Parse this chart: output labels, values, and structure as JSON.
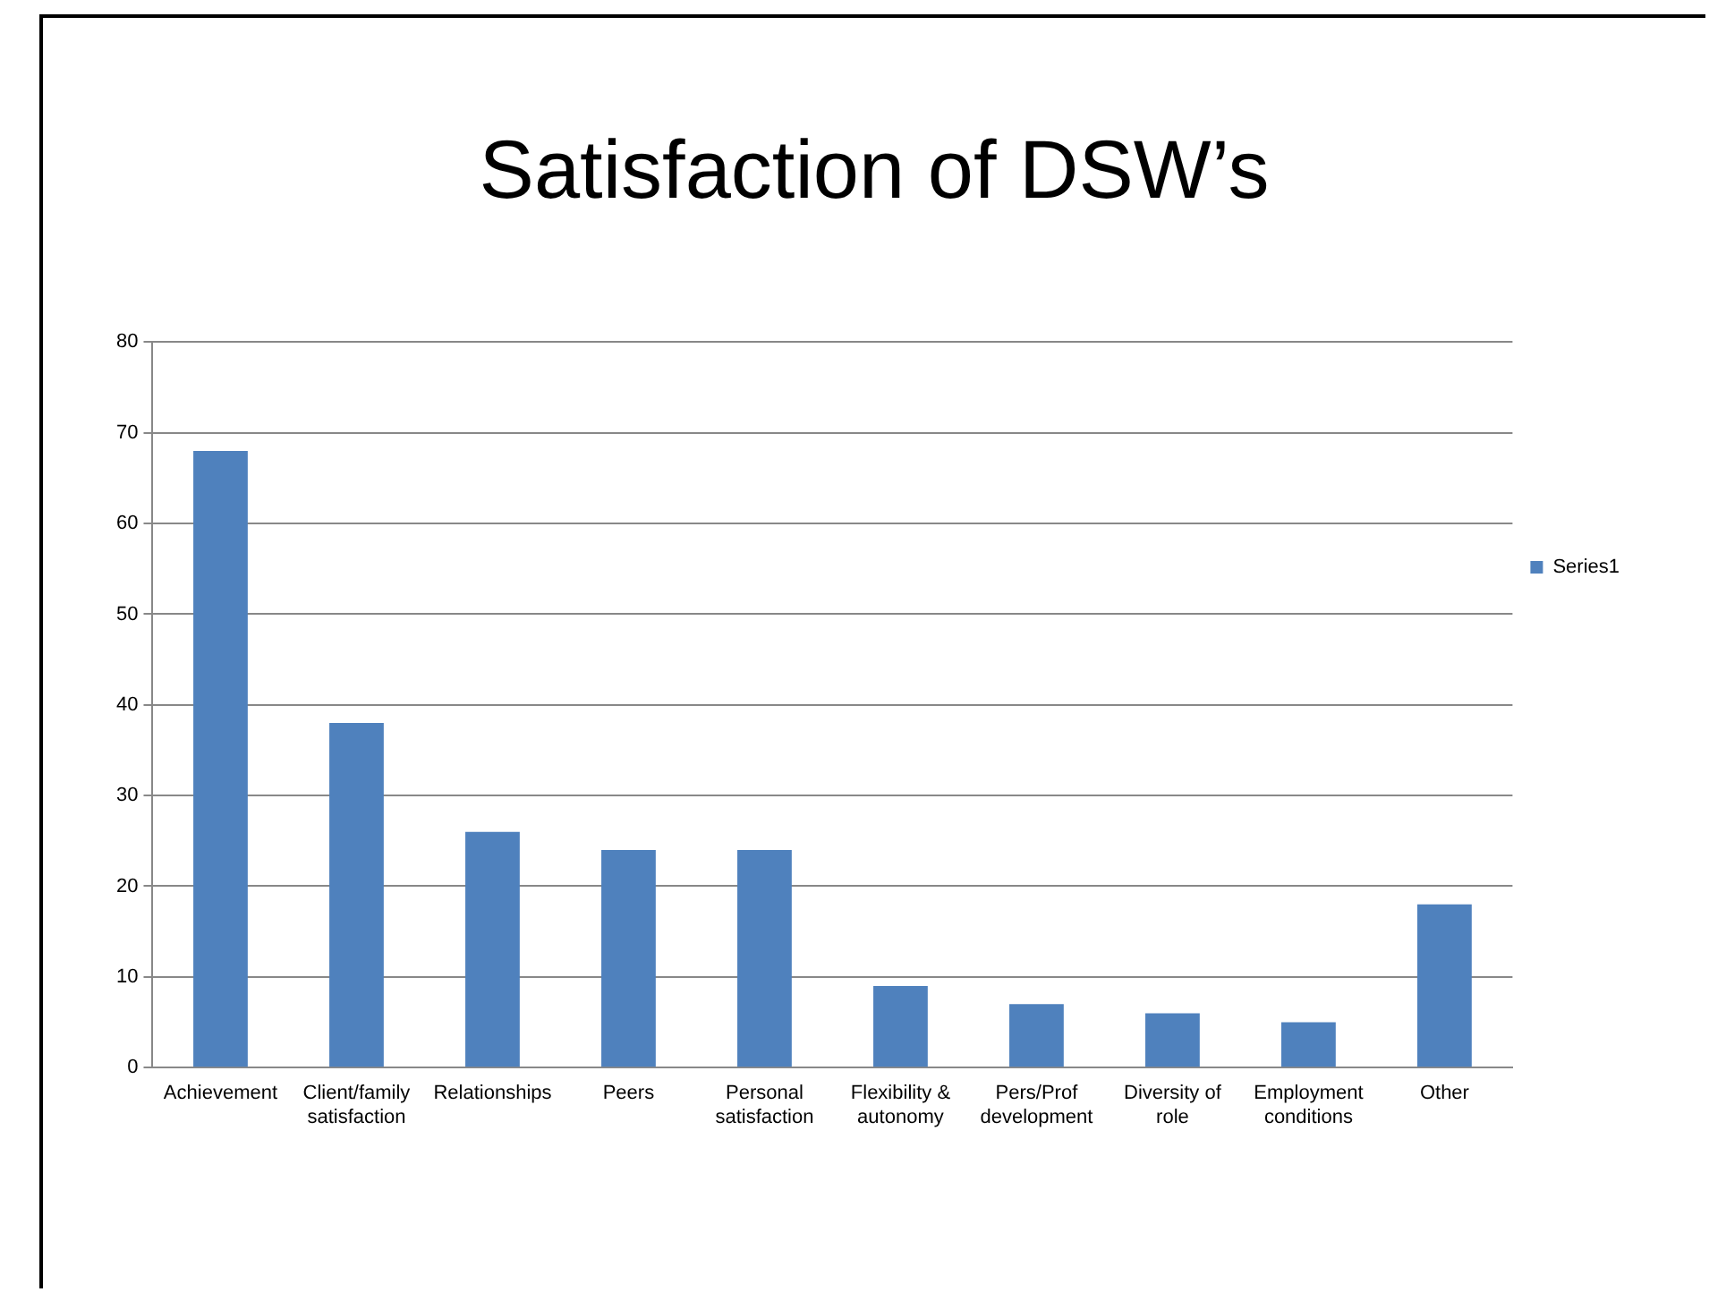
{
  "chart_data": {
    "type": "bar",
    "title": "Satisfaction of DSW’s",
    "categories": [
      "Achievement",
      "Client/family satisfaction",
      "Relationships",
      "Peers",
      "Personal satisfaction",
      "Flexibility & autonomy",
      "Pers/Prof development",
      "Diversity of role",
      "Employment conditions",
      "Other"
    ],
    "series": [
      {
        "name": "Series1",
        "color": "#4f81bd",
        "values": [
          68,
          38,
          26,
          24,
          24,
          9,
          7,
          6,
          5,
          18
        ]
      }
    ],
    "ylim": [
      0,
      80
    ],
    "yticks": [
      0,
      10,
      20,
      30,
      40,
      50,
      60,
      70,
      80
    ],
    "grid": "y",
    "legend": "right"
  }
}
